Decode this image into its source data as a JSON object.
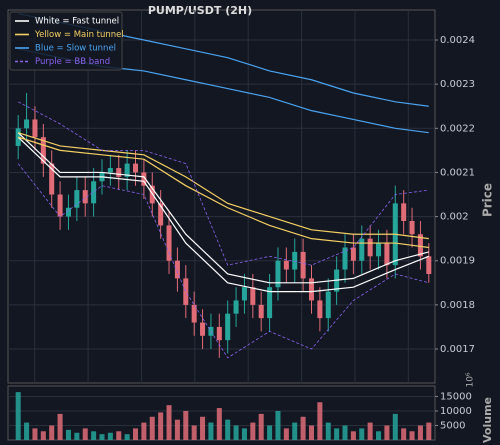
{
  "chart_data": {
    "type": "candlestick",
    "title": "PUMP/USDT (2H)",
    "ylabel": "Price",
    "volume_label": "Volume",
    "volume_offset": "10⁶",
    "up_color": "#26a69a",
    "down_color": "#e06c78",
    "open": [
      0.00216,
      0.0022,
      0.00222,
      0.00218,
      0.00212,
      0.00205,
      0.002,
      0.00202,
      0.00206,
      0.00203,
      0.00208,
      0.0021,
      0.00211,
      0.00209,
      0.00212,
      0.0021,
      0.00207,
      0.00203,
      0.00198,
      0.0019,
      0.00186,
      0.0018,
      0.00176,
      0.00173,
      0.00175,
      0.00172,
      0.00178,
      0.00181,
      0.00184,
      0.0018,
      0.00177,
      0.00184,
      0.0019,
      0.00188,
      0.00192,
      0.00186,
      0.00181,
      0.00177,
      0.00183,
      0.00188,
      0.00193,
      0.0019,
      0.00195,
      0.00191,
      0.00194,
      0.00189,
      0.00203,
      0.00199,
      0.00196,
      0.00191
    ],
    "high": [
      0.00223,
      0.00228,
      0.00225,
      0.00221,
      0.00215,
      0.00208,
      0.00205,
      0.00209,
      0.00209,
      0.00211,
      0.00213,
      0.00214,
      0.00214,
      0.00215,
      0.00215,
      0.00213,
      0.0021,
      0.00206,
      0.00201,
      0.00193,
      0.00189,
      0.00183,
      0.00179,
      0.00178,
      0.00178,
      0.00181,
      0.00184,
      0.00187,
      0.00187,
      0.00183,
      0.00187,
      0.00193,
      0.00193,
      0.00195,
      0.00195,
      0.00189,
      0.00184,
      0.00186,
      0.00191,
      0.00196,
      0.00196,
      0.00198,
      0.00198,
      0.00197,
      0.00197,
      0.00207,
      0.00206,
      0.00202,
      0.00199,
      0.00194
    ],
    "low": [
      0.00213,
      0.00217,
      0.00215,
      0.00209,
      0.00202,
      0.00197,
      0.00197,
      0.00199,
      0.002,
      0.002,
      0.00205,
      0.00207,
      0.00206,
      0.00206,
      0.00207,
      0.00204,
      0.002,
      0.00195,
      0.00187,
      0.00183,
      0.00177,
      0.00173,
      0.0017,
      0.0017,
      0.00168,
      0.00169,
      0.00175,
      0.00178,
      0.00177,
      0.00174,
      0.00174,
      0.00181,
      0.00185,
      0.00185,
      0.00183,
      0.00178,
      0.00174,
      0.00174,
      0.0018,
      0.00185,
      0.00187,
      0.00187,
      0.00188,
      0.00188,
      0.00186,
      0.00186,
      0.00196,
      0.00193,
      0.00188,
      0.00185
    ],
    "close": [
      0.0022,
      0.00222,
      0.00218,
      0.00212,
      0.00205,
      0.002,
      0.00202,
      0.00206,
      0.00203,
      0.00208,
      0.0021,
      0.00211,
      0.00209,
      0.00212,
      0.0021,
      0.00207,
      0.00203,
      0.00198,
      0.0019,
      0.00186,
      0.0018,
      0.00176,
      0.00173,
      0.00175,
      0.00172,
      0.00178,
      0.00181,
      0.00184,
      0.0018,
      0.00177,
      0.00184,
      0.0019,
      0.00188,
      0.00192,
      0.00186,
      0.00181,
      0.00177,
      0.00183,
      0.00188,
      0.00193,
      0.0019,
      0.00195,
      0.00191,
      0.00194,
      0.00189,
      0.00203,
      0.00199,
      0.00196,
      0.00191,
      0.00187
    ],
    "volume": [
      16500,
      6000,
      4000,
      3000,
      5000,
      9000,
      3500,
      2500,
      4000,
      3000,
      2000,
      2500,
      3000,
      2000,
      4000,
      6000,
      8000,
      9500,
      12000,
      7000,
      10000,
      5000,
      8000,
      6000,
      11000,
      7000,
      5000,
      4000,
      6000,
      9000,
      5000,
      10000,
      4000,
      6000,
      8000,
      5000,
      13000,
      6000,
      4000,
      5000,
      3000,
      4000,
      6000,
      3000,
      5000,
      9000,
      4000,
      3000,
      5000,
      6000
    ],
    "ylim": [
      0.001623,
      0.002468
    ],
    "yticks": [
      0.0017,
      0.0018,
      0.0019,
      0.002,
      0.0021,
      0.0022,
      0.0023,
      0.0024
    ],
    "vlim": [
      0,
      18600
    ],
    "vticks": [
      5000,
      10000,
      15000
    ],
    "line_x": [
      0,
      5,
      10,
      15,
      20,
      25,
      30,
      35,
      40,
      45,
      49
    ],
    "tunnels": [
      {
        "name": "White = Fast tunnel",
        "color": "#ffffff",
        "dashed": false,
        "upper": [
          0.00219,
          0.0021,
          0.0021,
          0.00209,
          0.00196,
          0.00187,
          0.00185,
          0.00185,
          0.00186,
          0.0019,
          0.00192
        ],
        "lower": [
          0.00218,
          0.00209,
          0.00209,
          0.00208,
          0.00194,
          0.00185,
          0.00183,
          0.00183,
          0.00184,
          0.00188,
          0.00191
        ]
      },
      {
        "name": "Yellow = Main tunnel",
        "color": "#f5d063",
        "dashed": false,
        "upper": [
          0.00219,
          0.00216,
          0.00215,
          0.00214,
          0.00209,
          0.00203,
          0.002,
          0.00197,
          0.00196,
          0.00196,
          0.00195
        ],
        "lower": [
          0.00218,
          0.00215,
          0.00214,
          0.00213,
          0.00207,
          0.00202,
          0.00198,
          0.00195,
          0.00194,
          0.00194,
          0.00193
        ]
      },
      {
        "name": "Blue = Slow tunnel",
        "color": "#4aa3f0",
        "dashed": false,
        "upper": [
          0.00246,
          0.00244,
          0.00242,
          0.0024,
          0.00238,
          0.00236,
          0.00233,
          0.00231,
          0.00228,
          0.00226,
          0.00225
        ],
        "lower": [
          0.00238,
          0.00236,
          0.00234,
          0.00233,
          0.00231,
          0.00229,
          0.00227,
          0.00224,
          0.00222,
          0.0022,
          0.00219
        ]
      },
      {
        "name": "Purple = BB band",
        "color": "#8a63f0",
        "dashed": true,
        "upper": [
          0.00226,
          0.00221,
          0.00215,
          0.00215,
          0.00212,
          0.00189,
          0.00191,
          0.00189,
          0.00193,
          0.00205,
          0.00206
        ],
        "lower": [
          0.00212,
          0.002,
          0.00207,
          0.00205,
          0.00183,
          0.00168,
          0.00174,
          0.0017,
          0.00181,
          0.00187,
          0.00185
        ]
      }
    ]
  }
}
